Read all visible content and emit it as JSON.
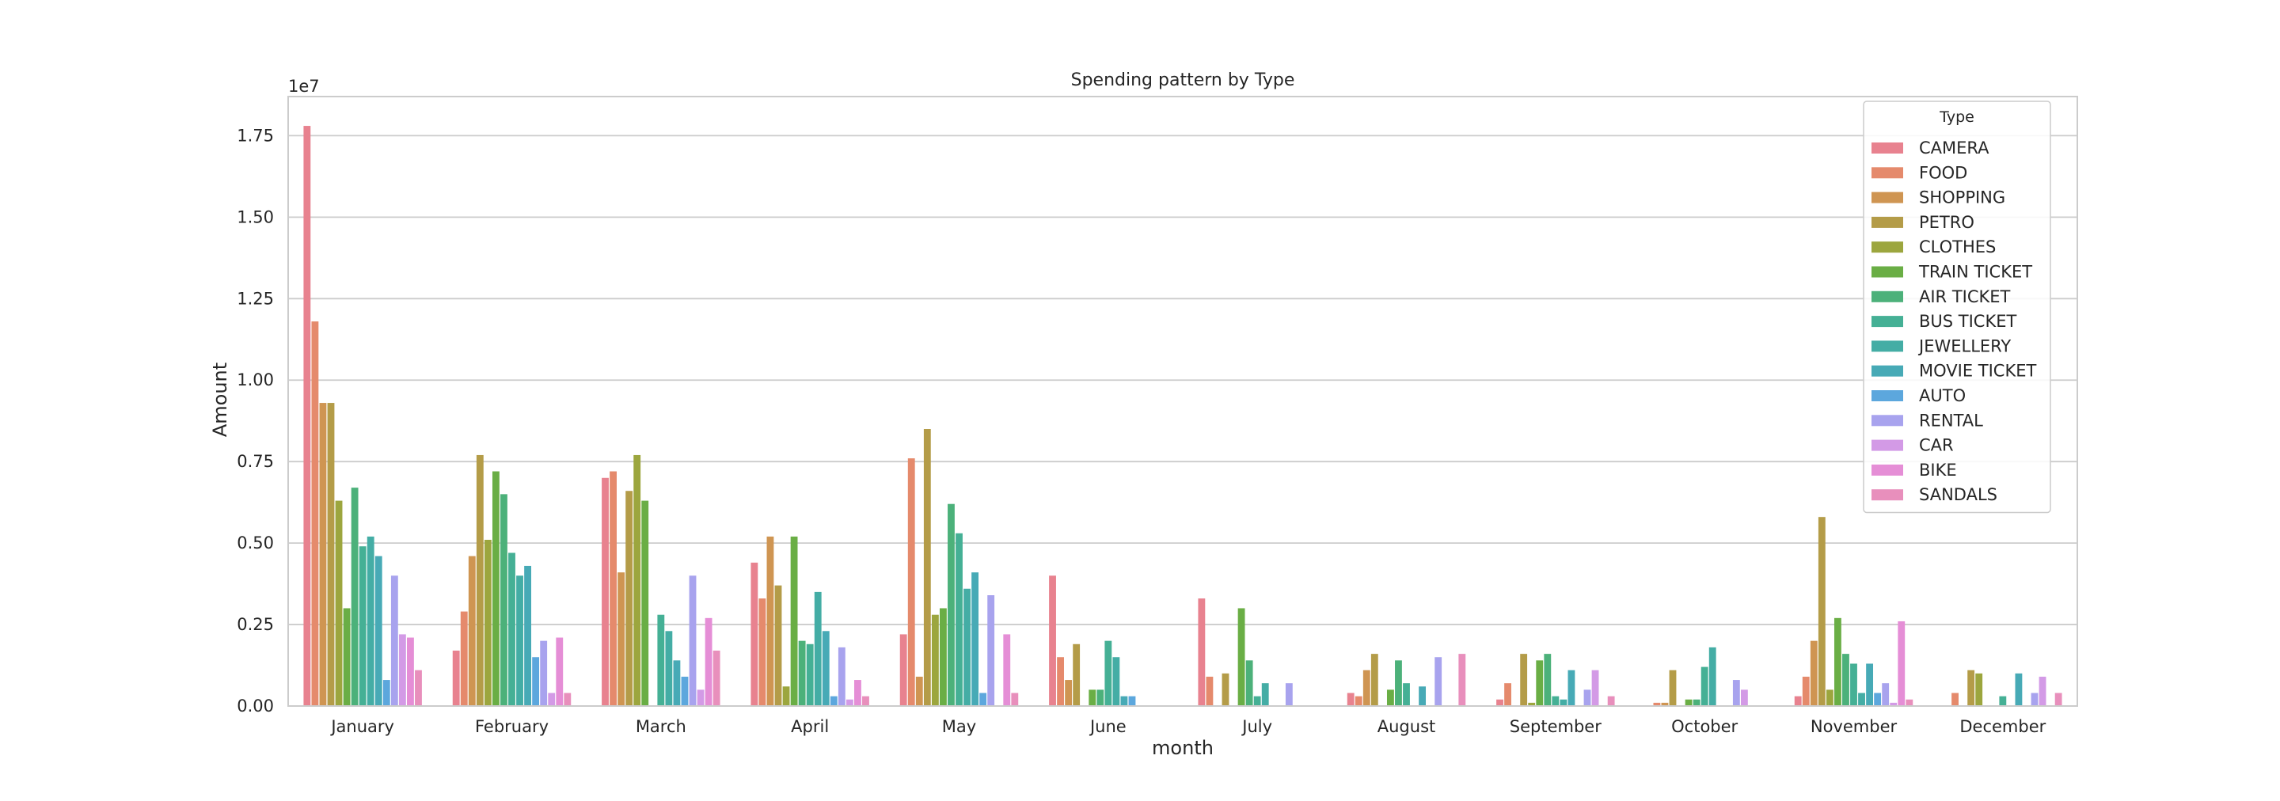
{
  "chart_data": {
    "type": "bar",
    "title": "Spending pattern by Type",
    "xlabel": "month",
    "ylabel": "Amount",
    "y_scale_label": "1e7",
    "y_scale_factor": 10000000,
    "ylim": [
      0,
      1.87
    ],
    "yticks": [
      0,
      0.25,
      0.5,
      0.75,
      1.0,
      1.25,
      1.5,
      1.75
    ],
    "ytick_labels": [
      "0.00",
      "0.25",
      "0.50",
      "0.75",
      "1.00",
      "1.25",
      "1.50",
      "1.75"
    ],
    "grid": "horizontal",
    "legend_title": "Type",
    "legend_position": "top-right",
    "categories": [
      "January",
      "February",
      "March",
      "April",
      "May",
      "June",
      "July",
      "August",
      "September",
      "October",
      "November",
      "December"
    ],
    "series": [
      {
        "name": "CAMERA",
        "color": "#e8828f",
        "values": [
          1.78,
          0.17,
          0.7,
          0.44,
          0.22,
          0.4,
          0.33,
          0.04,
          0.02,
          0.0,
          0.03,
          0.0
        ]
      },
      {
        "name": "FOOD",
        "color": "#e58a6c",
        "values": [
          1.18,
          0.29,
          0.72,
          0.33,
          0.76,
          0.15,
          0.09,
          0.03,
          0.07,
          0.01,
          0.09,
          0.04
        ]
      },
      {
        "name": "SHOPPING",
        "color": "#cf9552",
        "values": [
          0.93,
          0.46,
          0.41,
          0.52,
          0.09,
          0.08,
          0.0,
          0.11,
          0.0,
          0.01,
          0.2,
          0.0
        ]
      },
      {
        "name": "PETRO",
        "color": "#b49c48",
        "values": [
          0.93,
          0.77,
          0.66,
          0.37,
          0.85,
          0.19,
          0.1,
          0.16,
          0.16,
          0.11,
          0.58,
          0.11
        ]
      },
      {
        "name": "CLOTHES",
        "color": "#9ca63e",
        "values": [
          0.63,
          0.51,
          0.77,
          0.06,
          0.28,
          0.0,
          0.0,
          0.0,
          0.01,
          0.0,
          0.05,
          0.1
        ]
      },
      {
        "name": "TRAIN TICKET",
        "color": "#6aae45",
        "values": [
          0.3,
          0.72,
          0.63,
          0.52,
          0.3,
          0.05,
          0.3,
          0.05,
          0.14,
          0.02,
          0.27,
          0.0
        ]
      },
      {
        "name": "AIR TICKET",
        "color": "#4cb17a",
        "values": [
          0.67,
          0.65,
          0.0,
          0.2,
          0.62,
          0.05,
          0.14,
          0.14,
          0.16,
          0.02,
          0.16,
          0.0
        ]
      },
      {
        "name": "BUS TICKET",
        "color": "#45b095",
        "values": [
          0.49,
          0.47,
          0.28,
          0.19,
          0.53,
          0.2,
          0.03,
          0.07,
          0.03,
          0.12,
          0.13,
          0.03
        ]
      },
      {
        "name": "JEWELLERY",
        "color": "#44ada5",
        "values": [
          0.52,
          0.4,
          0.23,
          0.35,
          0.36,
          0.15,
          0.07,
          0.0,
          0.02,
          0.18,
          0.04,
          0.0
        ]
      },
      {
        "name": "MOVIE TICKET",
        "color": "#47aab6",
        "values": [
          0.46,
          0.43,
          0.14,
          0.23,
          0.41,
          0.03,
          0.0,
          0.06,
          0.11,
          0.0,
          0.13,
          0.1
        ]
      },
      {
        "name": "AUTO",
        "color": "#5ca7dd",
        "values": [
          0.08,
          0.15,
          0.09,
          0.03,
          0.04,
          0.03,
          0.0,
          0.0,
          0.0,
          0.0,
          0.04,
          0.0
        ]
      },
      {
        "name": "RENTAL",
        "color": "#a8a3ee",
        "values": [
          0.4,
          0.2,
          0.4,
          0.18,
          0.34,
          0.0,
          0.07,
          0.15,
          0.05,
          0.08,
          0.07,
          0.04
        ]
      },
      {
        "name": "CAR",
        "color": "#d39ae6",
        "values": [
          0.22,
          0.04,
          0.05,
          0.02,
          0.0,
          0.0,
          0.0,
          0.0,
          0.11,
          0.05,
          0.01,
          0.09
        ]
      },
      {
        "name": "BIKE",
        "color": "#e58ed6",
        "values": [
          0.21,
          0.21,
          0.27,
          0.08,
          0.22,
          0.0,
          0.0,
          0.0,
          0.0,
          0.0,
          0.26,
          0.0
        ]
      },
      {
        "name": "SANDALS",
        "color": "#e88fbc",
        "values": [
          0.11,
          0.04,
          0.17,
          0.03,
          0.04,
          0.0,
          0.0,
          0.16,
          0.03,
          0.0,
          0.02,
          0.04
        ]
      }
    ]
  }
}
